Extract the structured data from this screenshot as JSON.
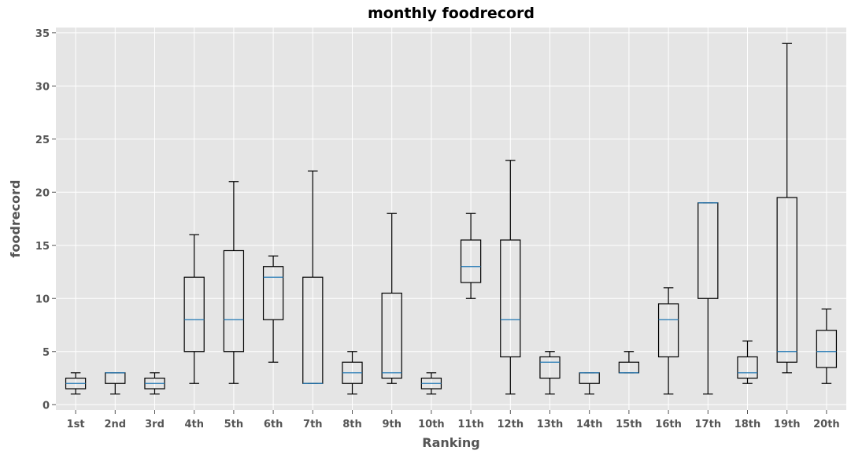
{
  "chart_data": {
    "type": "boxplot",
    "title": "monthly foodrecord",
    "xlabel": "Ranking",
    "ylabel": "foodrecord",
    "ylim": [
      -0.5,
      35.5
    ],
    "yticks": [
      0,
      5,
      10,
      15,
      20,
      25,
      30,
      35
    ],
    "grid": true,
    "style": "ggplot",
    "colors": {
      "background": "#E5E5E5",
      "grid": "#FFFFFF",
      "box": "#000000",
      "median": "#1F77B4",
      "text": "#555555"
    },
    "categories": [
      "1st",
      "2nd",
      "3rd",
      "4th",
      "5th",
      "6th",
      "7th",
      "8th",
      "9th",
      "10th",
      "11th",
      "12th",
      "13th",
      "14th",
      "15th",
      "16th",
      "17th",
      "18th",
      "19th",
      "20th"
    ],
    "boxes": [
      {
        "whislo": 1,
        "q1": 1.5,
        "med": 2,
        "q3": 2.5,
        "whishi": 3
      },
      {
        "whislo": 1,
        "q1": 2,
        "med": 3,
        "q3": 3,
        "whishi": 3
      },
      {
        "whislo": 1,
        "q1": 1.5,
        "med": 2,
        "q3": 2.5,
        "whishi": 3
      },
      {
        "whislo": 2,
        "q1": 5,
        "med": 8,
        "q3": 12,
        "whishi": 16
      },
      {
        "whislo": 2,
        "q1": 5,
        "med": 8,
        "q3": 14.5,
        "whishi": 21
      },
      {
        "whislo": 4,
        "q1": 8,
        "med": 12,
        "q3": 13,
        "whishi": 14
      },
      {
        "whislo": 2,
        "q1": 2,
        "med": 2,
        "q3": 12,
        "whishi": 22
      },
      {
        "whislo": 1,
        "q1": 2,
        "med": 3,
        "q3": 4,
        "whishi": 5
      },
      {
        "whislo": 2,
        "q1": 2.5,
        "med": 3,
        "q3": 10.5,
        "whishi": 18
      },
      {
        "whislo": 1,
        "q1": 1.5,
        "med": 2,
        "q3": 2.5,
        "whishi": 3
      },
      {
        "whislo": 10,
        "q1": 11.5,
        "med": 13,
        "q3": 15.5,
        "whishi": 18
      },
      {
        "whislo": 1,
        "q1": 4.5,
        "med": 8,
        "q3": 15.5,
        "whishi": 23
      },
      {
        "whislo": 1,
        "q1": 2.5,
        "med": 4,
        "q3": 4.5,
        "whishi": 5
      },
      {
        "whislo": 1,
        "q1": 2,
        "med": 3,
        "q3": 3,
        "whishi": 3
      },
      {
        "whislo": 3,
        "q1": 3,
        "med": 3,
        "q3": 4,
        "whishi": 5
      },
      {
        "whislo": 1,
        "q1": 4.5,
        "med": 8,
        "q3": 9.5,
        "whishi": 11
      },
      {
        "whislo": 1,
        "q1": 10,
        "med": 19,
        "q3": 19,
        "whishi": 19
      },
      {
        "whislo": 2,
        "q1": 2.5,
        "med": 3,
        "q3": 4.5,
        "whishi": 6
      },
      {
        "whislo": 3,
        "q1": 4,
        "med": 5,
        "q3": 19.5,
        "whishi": 34
      },
      {
        "whislo": 2,
        "q1": 3.5,
        "med": 5,
        "q3": 7,
        "whishi": 9
      }
    ]
  }
}
